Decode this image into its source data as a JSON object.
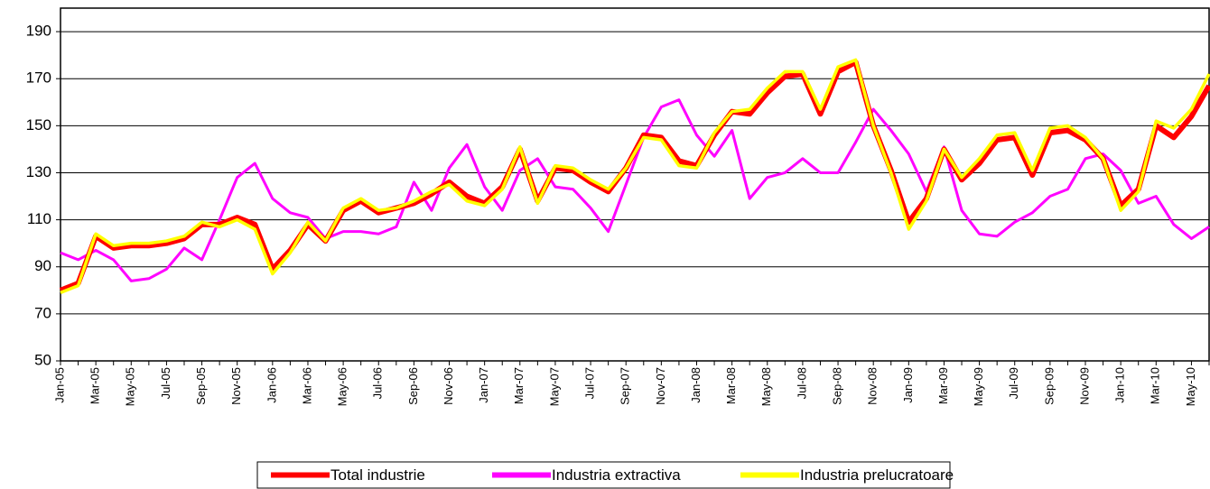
{
  "chart_data": {
    "type": "line",
    "categories": [
      "Jan-05",
      null,
      "Mar-05",
      null,
      "May-05",
      null,
      "Jul-05",
      null,
      "Sep-05",
      null,
      "Nov-05",
      null,
      "Jan-06",
      null,
      "Mar-06",
      null,
      "May-06",
      null,
      "Jul-06",
      null,
      "Sep-06",
      null,
      "Nov-06",
      null,
      "Jan-07",
      null,
      "Mar-07",
      null,
      "May-07",
      null,
      "Jul-07",
      null,
      "Sep-07",
      null,
      "Nov-07",
      null,
      "Jan-08",
      null,
      "Mar-08",
      null,
      "May-08",
      null,
      "Jul-08",
      null,
      "Sep-08",
      null,
      "Nov-08",
      null,
      "Jan-09",
      null,
      "Mar-09",
      null,
      "May-09",
      null,
      "Jul-09",
      null,
      "Sep-09",
      null,
      "Nov-09",
      null,
      "Jan-10",
      null,
      "Mar-10",
      null,
      "May-10",
      null
    ],
    "series": [
      {
        "name": "Total industrie",
        "color": "#ff0000",
        "values": [
          80,
          83,
          103,
          98,
          99,
          99,
          100,
          102,
          108,
          108,
          111,
          108,
          89,
          97,
          108,
          101,
          114,
          118,
          113,
          115,
          117,
          121,
          126,
          120,
          117,
          124,
          140,
          118,
          132,
          131,
          126,
          122,
          132,
          146,
          145,
          135,
          133,
          146,
          156,
          155,
          164,
          171,
          172,
          155,
          173,
          177,
          150,
          131,
          109,
          119,
          140,
          127,
          134,
          144,
          145,
          129,
          147,
          148,
          144,
          136,
          116,
          123,
          150,
          145,
          154,
          167
        ]
      },
      {
        "name": "Industria extractiva",
        "color": "#ff00ff",
        "values": [
          96,
          93,
          97,
          93,
          84,
          85,
          89,
          98,
          93,
          110,
          128,
          134,
          119,
          113,
          111,
          102,
          105,
          105,
          104,
          107,
          126,
          114,
          132,
          142,
          124,
          114,
          131,
          136,
          124,
          123,
          115,
          105,
          125,
          145,
          158,
          161,
          146,
          137,
          148,
          119,
          128,
          130,
          136,
          130,
          130,
          143,
          157,
          148,
          138,
          122,
          141,
          114,
          104,
          103,
          109,
          113,
          120,
          123,
          136,
          138,
          131,
          117,
          120,
          108,
          102,
          107
        ]
      },
      {
        "name": "Industria prelucratoare",
        "color": "#ffff00",
        "values": [
          79,
          82,
          104,
          99,
          100,
          100,
          101,
          103,
          109,
          107,
          110,
          106,
          87,
          96,
          109,
          101,
          115,
          119,
          114,
          115,
          118,
          122,
          125,
          118,
          116,
          123,
          141,
          117,
          133,
          132,
          127,
          123,
          132,
          145,
          144,
          133,
          132,
          147,
          156,
          157,
          166,
          173,
          173,
          157,
          175,
          178,
          150,
          130,
          106,
          118,
          140,
          128,
          136,
          146,
          147,
          131,
          149,
          150,
          145,
          136,
          114,
          122,
          152,
          149,
          157,
          172
        ]
      }
    ],
    "ylim": [
      50,
      200
    ],
    "yticks": [
      50,
      70,
      90,
      110,
      130,
      150,
      170,
      190
    ],
    "grid": true
  }
}
